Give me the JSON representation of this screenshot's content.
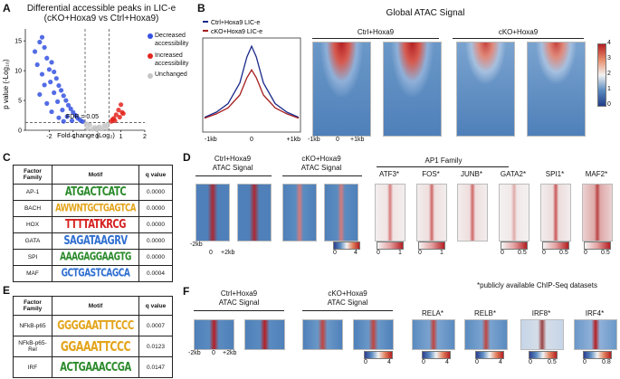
{
  "panels": {
    "A": "A",
    "B": "B",
    "C": "C",
    "D": "D",
    "E": "E",
    "F": "F"
  },
  "panelA": {
    "title_line1": "Differential accessible peaks in LIC-e",
    "title_line2": "(cKO+Hoxa9 vs Ctrl+Hoxa9)",
    "ylabel": "p value (-Log₁₀)",
    "xlabel": "Fold change (Log₂)",
    "fdr_label": "FDR = 0.05",
    "legend": [
      {
        "label": "Decreased accessibility",
        "color": "#3552e0"
      },
      {
        "label": "Increased accessibility",
        "color": "#e3261f"
      },
      {
        "label": "Unchanged",
        "color": "#c6c6c6"
      }
    ]
  },
  "panelB": {
    "title": "Global ATAC Signal",
    "legend_ctrl": "Ctrl+Hoxa9 LIC-e",
    "legend_cko": "cKO+Hoxa9 LIC-e",
    "ctrl_color": "#1b2a8a",
    "cko_color": "#a41c1c",
    "profile_ticks": [
      "-1kb",
      "0",
      "+1kb"
    ],
    "heatmap_ticks": [
      "-1kb",
      "0",
      "+1kb"
    ],
    "group_ctrl": "Ctrl+Hoxa9",
    "group_cko": "cKO+Hoxa9",
    "colorbar_ticks": [
      "4",
      "3",
      "2",
      "1",
      "0"
    ]
  },
  "panelC": {
    "headers": {
      "family": "Factor Family",
      "motif": "Motif",
      "q": "q value"
    },
    "rows": [
      {
        "family": "AP-1",
        "motif": "ATGACTCATC",
        "q": "0.0000"
      },
      {
        "family": "BACH",
        "motif": "AWWNTGCTGAGTCA",
        "q": "0.0000"
      },
      {
        "family": "HOX",
        "motif": "TTTTATKRCG",
        "q": "0.0000"
      },
      {
        "family": "GATA",
        "motif": "SAGATAAGRV",
        "q": "0.0000"
      },
      {
        "family": "SPI",
        "motif": "AAAGAGGAAGTG",
        "q": "0.0000"
      },
      {
        "family": "MAF",
        "motif": "GCTGASTCAGCA",
        "q": "0.0004"
      }
    ]
  },
  "panelD": {
    "ctrl_label": "Ctrl+Hoxa9\nATAC Signal",
    "cko_label": "cKO+Hoxa9\nATAC Signal",
    "ap1_label": "AP1 Family",
    "tracks": [
      "ATF3*",
      "FOS*",
      "JUNB*",
      "GATA2*",
      "SPI1*",
      "MAF2*"
    ],
    "axis_ticks": [
      "-2kb",
      "0",
      "+2kb"
    ],
    "cbars": [
      {
        "min": "0",
        "max": "4"
      },
      {
        "min": "0",
        "max": "1"
      },
      {
        "min": "0",
        "max": "1"
      },
      {
        "min": "0",
        "max": "0.5"
      },
      {
        "min": "0",
        "max": "0.5"
      },
      {
        "min": "0",
        "max": "0.5"
      }
    ]
  },
  "panelE": {
    "headers": {
      "family": "Factor Family",
      "motif": "Motif",
      "q": "q value"
    },
    "rows": [
      {
        "family": "NFkB-p65",
        "motif": "GGGGAATTTCCC",
        "q": "0.0007"
      },
      {
        "family": "NFkB-p65-Rel",
        "motif": "GGAAATTCCC",
        "q": "0.0123"
      },
      {
        "family": "IRF",
        "motif": "ACTGAAACCGA",
        "q": "0.0147"
      }
    ]
  },
  "panelF": {
    "footnote": "*publicly available ChIP-Seq datasets",
    "ctrl_label": "Ctrl+Hoxa9\nATAC Signal",
    "cko_label": "cKO+Hoxa9\nATAC Signal",
    "tracks": [
      "RELA*",
      "RELB*",
      "IRF8*",
      "IRF4*"
    ],
    "axis_ticks": [
      "-2kb",
      "0",
      "+2kb"
    ],
    "cbars": [
      {
        "min": "0",
        "max": "4"
      },
      {
        "min": "0",
        "max": "4"
      },
      {
        "min": "0",
        "max": "4"
      },
      {
        "min": "0",
        "max": "0.5"
      },
      {
        "min": "0",
        "max": "0.8"
      }
    ]
  },
  "chart_data": [
    {
      "type": "scatter",
      "title": "Differential accessible peaks in LIC-e (cKO+Hoxa9 vs Ctrl+Hoxa9)",
      "xlabel": "Fold change (Log2)",
      "ylabel": "p value (-Log10)",
      "xlim": [
        -3,
        2
      ],
      "ylim": [
        0,
        17
      ],
      "x_ticks": [
        "-2",
        "-1",
        "0",
        "1",
        "2"
      ],
      "y_ticks": [
        "0",
        "5",
        "10",
        "15"
      ],
      "thresholds": {
        "fdr_y": 1.3,
        "fc_x": [
          -0.5,
          0.5
        ]
      },
      "series": [
        {
          "name": "Decreased accessibility",
          "points": [
            [
              -2.3,
              15.6
            ],
            [
              -2.6,
              13.2
            ],
            [
              -2.4,
              14.8
            ],
            [
              -2.2,
              13.9
            ],
            [
              -2.1,
              12.1
            ],
            [
              -2.5,
              11.0
            ],
            [
              -1.9,
              11.4
            ],
            [
              -2.0,
              10.2
            ],
            [
              -2.3,
              9.4
            ],
            [
              -1.8,
              9.8
            ],
            [
              -1.7,
              8.7
            ],
            [
              -1.95,
              8.1
            ],
            [
              -2.2,
              7.6
            ],
            [
              -1.6,
              7.5
            ],
            [
              -1.5,
              6.7
            ],
            [
              -1.8,
              6.3
            ],
            [
              -2.4,
              6.0
            ],
            [
              -1.4,
              5.8
            ],
            [
              -1.3,
              5.0
            ],
            [
              -1.65,
              4.8
            ],
            [
              -2.1,
              4.5
            ],
            [
              -1.2,
              4.2
            ],
            [
              -1.1,
              3.6
            ],
            [
              -1.45,
              3.4
            ],
            [
              -1.9,
              3.1
            ],
            [
              -1.0,
              3.0
            ],
            [
              -0.9,
              2.5
            ],
            [
              -1.25,
              2.3
            ],
            [
              -1.6,
              2.1
            ],
            [
              -0.8,
              2.0
            ],
            [
              -0.7,
              1.7
            ],
            [
              -1.05,
              1.6
            ],
            [
              -1.4,
              1.5
            ],
            [
              -0.6,
              1.45
            ]
          ]
        },
        {
          "name": "Increased accessibility",
          "points": [
            [
              0.6,
              1.5
            ],
            [
              0.7,
              2.0
            ],
            [
              0.8,
              2.6
            ],
            [
              0.9,
              3.4
            ],
            [
              1.0,
              4.3
            ],
            [
              1.05,
              3.0
            ],
            [
              0.75,
              1.6
            ],
            [
              0.95,
              2.2
            ],
            [
              1.1,
              2.8
            ],
            [
              0.65,
              1.8
            ]
          ]
        },
        {
          "name": "Unchanged",
          "points": [
            [
              -0.4,
              0.3
            ],
            [
              -0.2,
              0.2
            ],
            [
              0.0,
              0.1
            ],
            [
              0.2,
              0.2
            ],
            [
              0.4,
              0.35
            ],
            [
              -0.3,
              0.9
            ],
            [
              0.3,
              0.8
            ],
            [
              -0.1,
              0.5
            ],
            [
              0.1,
              0.6
            ],
            [
              -0.45,
              1.1
            ],
            [
              0.45,
              1.0
            ],
            [
              0.0,
              0.4
            ]
          ]
        }
      ]
    },
    {
      "type": "line",
      "title": "Global ATAC Signal (profile)",
      "x": [
        -1,
        -0.75,
        -0.5,
        -0.25,
        -0.1,
        0,
        0.1,
        0.25,
        0.5,
        0.75,
        1
      ],
      "x_tick_labels": [
        "-1kb",
        "0",
        "+1kb"
      ],
      "series": [
        {
          "name": "Ctrl+Hoxa9 LIC-e",
          "values": [
            0.3,
            0.42,
            0.62,
            1.1,
            1.7,
            1.95,
            1.7,
            1.1,
            0.62,
            0.42,
            0.3
          ]
        },
        {
          "name": "cKO+Hoxa9 LIC-e",
          "values": [
            0.28,
            0.38,
            0.52,
            0.82,
            1.22,
            1.4,
            1.22,
            0.82,
            0.52,
            0.38,
            0.28
          ]
        }
      ]
    }
  ]
}
